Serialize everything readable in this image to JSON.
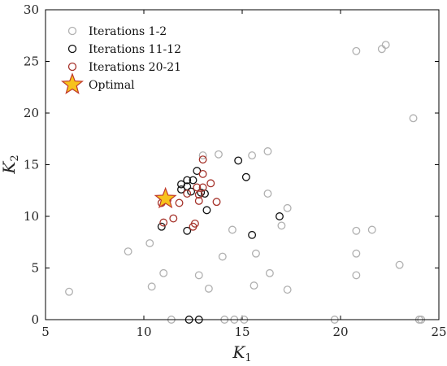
{
  "chart_data": {
    "type": "scatter",
    "xlabel": "K",
    "xlabel_sub": "1",
    "ylabel": "K",
    "ylabel_sub": "2",
    "xlim": [
      5,
      25
    ],
    "ylim": [
      0,
      30
    ],
    "xticks": [
      5,
      10,
      15,
      20,
      25
    ],
    "yticks": [
      0,
      5,
      10,
      15,
      20,
      25,
      30
    ],
    "grid": false,
    "legend_position": "top-left",
    "series": [
      {
        "name": "Iterations 1-2",
        "marker": "circle",
        "color": "#b0b0b0",
        "points": [
          [
            6.2,
            2.7
          ],
          [
            9.2,
            6.6
          ],
          [
            10.3,
            7.4
          ],
          [
            10.4,
            3.2
          ],
          [
            11.0,
            4.5
          ],
          [
            11.4,
            0.0
          ],
          [
            12.8,
            4.3
          ],
          [
            13.0,
            15.9
          ],
          [
            13.3,
            3.0
          ],
          [
            13.8,
            16.0
          ],
          [
            14.0,
            6.1
          ],
          [
            14.1,
            0.0
          ],
          [
            14.5,
            8.7
          ],
          [
            14.6,
            0.0
          ],
          [
            15.1,
            0.0
          ],
          [
            15.5,
            15.9
          ],
          [
            15.6,
            3.3
          ],
          [
            15.7,
            6.4
          ],
          [
            16.3,
            16.3
          ],
          [
            16.3,
            12.2
          ],
          [
            16.4,
            4.5
          ],
          [
            17.0,
            9.1
          ],
          [
            17.3,
            10.8
          ],
          [
            17.3,
            2.9
          ],
          [
            19.7,
            0.0
          ],
          [
            20.8,
            8.6
          ],
          [
            20.8,
            6.4
          ],
          [
            20.8,
            4.3
          ],
          [
            20.8,
            26.0
          ],
          [
            21.6,
            8.7
          ],
          [
            22.1,
            26.2
          ],
          [
            22.3,
            26.6
          ],
          [
            23.0,
            5.3
          ],
          [
            23.7,
            19.5
          ],
          [
            24.0,
            0.0
          ],
          [
            24.1,
            0.0
          ]
        ]
      },
      {
        "name": "Iterations 11-12",
        "marker": "circle",
        "color": "#111111",
        "points": [
          [
            10.9,
            9.0
          ],
          [
            11.9,
            13.1
          ],
          [
            11.9,
            12.6
          ],
          [
            12.2,
            13.5
          ],
          [
            12.2,
            12.9
          ],
          [
            12.2,
            8.6
          ],
          [
            12.4,
            12.4
          ],
          [
            12.5,
            13.5
          ],
          [
            12.3,
            0.0
          ],
          [
            12.7,
            14.4
          ],
          [
            12.8,
            0.0
          ],
          [
            12.9,
            12.3
          ],
          [
            13.1,
            12.2
          ],
          [
            13.2,
            10.6
          ],
          [
            14.8,
            15.4
          ],
          [
            15.2,
            13.8
          ],
          [
            15.5,
            8.2
          ],
          [
            16.9,
            10.0
          ]
        ]
      },
      {
        "name": "Iterations 20-21",
        "marker": "circle",
        "color": "#a5322a",
        "points": [
          [
            10.9,
            11.3
          ],
          [
            11.0,
            9.4
          ],
          [
            11.2,
            11.6
          ],
          [
            11.5,
            9.8
          ],
          [
            11.8,
            11.3
          ],
          [
            12.2,
            12.2
          ],
          [
            12.5,
            9.0
          ],
          [
            12.6,
            9.3
          ],
          [
            12.7,
            12.8
          ],
          [
            12.8,
            12.1
          ],
          [
            12.8,
            11.5
          ],
          [
            13.0,
            12.8
          ],
          [
            13.0,
            14.1
          ],
          [
            13.0,
            15.5
          ],
          [
            13.4,
            13.2
          ],
          [
            13.7,
            11.4
          ]
        ]
      },
      {
        "name": "Optimal",
        "marker": "star",
        "color": "#f7c31b",
        "points": [
          [
            11.1,
            11.7
          ]
        ]
      }
    ]
  }
}
